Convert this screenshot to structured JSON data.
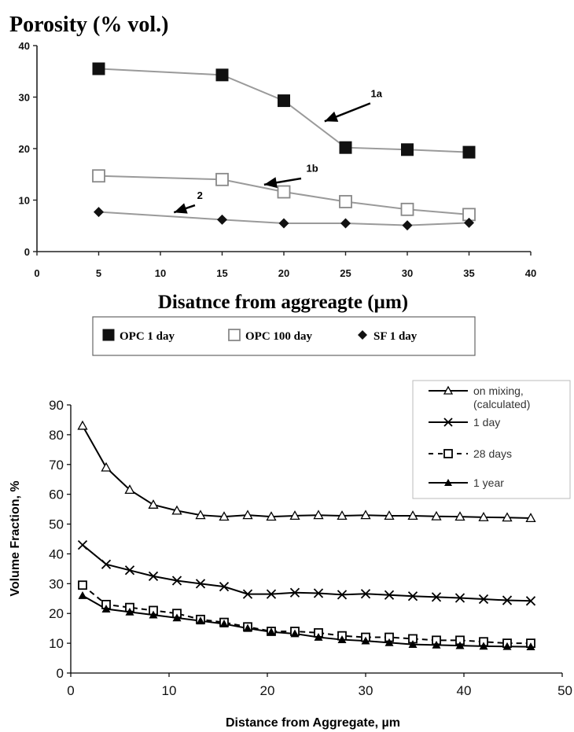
{
  "chart_data": [
    {
      "type": "line",
      "title": "Porosity (% vol.)",
      "xlabel": "Disatnce from aggreagte (µm)",
      "ylabel": "",
      "xlim": [
        0,
        40
      ],
      "ylim": [
        0,
        40
      ],
      "xticks": [
        "0",
        "5",
        "10",
        "15",
        "20",
        "25",
        "30",
        "35",
        "40"
      ],
      "yticks": [
        "0",
        "10",
        "20",
        "30",
        "40"
      ],
      "grid": false,
      "legend_position": "bottom",
      "series": [
        {
          "name": "OPC 1 day",
          "marker": "filled-square",
          "color": "#111111",
          "line_color": "#9a9a9a",
          "x": [
            5,
            15,
            20,
            25,
            30,
            35
          ],
          "y": [
            35.5,
            34.3,
            29.3,
            20.2,
            19.8,
            19.3
          ]
        },
        {
          "name": "OPC 100 day",
          "marker": "open-square",
          "color": "#888888",
          "line_color": "#9a9a9a",
          "x": [
            5,
            15,
            20,
            25,
            30,
            35
          ],
          "y": [
            14.7,
            14.0,
            11.6,
            9.7,
            8.2,
            7.2
          ]
        },
        {
          "name": "SF 1 day",
          "marker": "filled-diamond",
          "color": "#111111",
          "line_color": "#9a9a9a",
          "x": [
            5,
            15,
            20,
            25,
            30,
            35
          ],
          "y": [
            7.7,
            6.2,
            5.5,
            5.5,
            5.1,
            5.6
          ]
        }
      ],
      "annotations": [
        {
          "text": "1a",
          "x": 27.5,
          "y": 30
        },
        {
          "text": "1b",
          "x": 22.3,
          "y": 15.5
        },
        {
          "text": "2",
          "x": 13.2,
          "y": 10.2
        }
      ]
    },
    {
      "type": "line",
      "title": "",
      "xlabel": "Distance from Aggregate,  µm",
      "ylabel": "Volume Fraction,  %",
      "xlim": [
        0,
        50
      ],
      "ylim": [
        0,
        90
      ],
      "xticks": [
        "0",
        "10",
        "20",
        "30",
        "40",
        "50"
      ],
      "yticks": [
        "0",
        "10",
        "20",
        "30",
        "40",
        "50",
        "60",
        "70",
        "80",
        "90"
      ],
      "grid": false,
      "legend_position": "top-right",
      "series": [
        {
          "name": "on mixing, (calculated)",
          "marker": "open-triangle",
          "line_style": "solid",
          "color": "#000000",
          "x": [
            1.2,
            3.6,
            6.0,
            8.4,
            10.8,
            13.2,
            15.6,
            18.0,
            20.4,
            22.8,
            25.2,
            27.6,
            30.0,
            32.4,
            34.8,
            37.2,
            39.6,
            42.0,
            44.4,
            46.8
          ],
          "y": [
            83,
            69,
            61.5,
            56.5,
            54.5,
            53,
            52.5,
            53,
            52.5,
            52.8,
            53,
            52.8,
            53,
            52.8,
            52.8,
            52.6,
            52.5,
            52.3,
            52.2,
            52
          ]
        },
        {
          "name": "1 day",
          "marker": "x",
          "line_style": "solid",
          "color": "#000000",
          "x": [
            1.2,
            3.6,
            6.0,
            8.4,
            10.8,
            13.2,
            15.6,
            18.0,
            20.4,
            22.8,
            25.2,
            27.6,
            30.0,
            32.4,
            34.8,
            37.2,
            39.6,
            42.0,
            44.4,
            46.8
          ],
          "y": [
            43,
            36.5,
            34.5,
            32.5,
            31,
            30,
            29,
            26.5,
            26.5,
            27,
            26.8,
            26.3,
            26.6,
            26.2,
            25.8,
            25.5,
            25.2,
            24.8,
            24.4,
            24.2
          ]
        },
        {
          "name": "28 days",
          "marker": "open-square",
          "line_style": "dashed",
          "color": "#000000",
          "x": [
            1.2,
            3.6,
            6.0,
            8.4,
            10.8,
            13.2,
            15.6,
            18.0,
            20.4,
            22.8,
            25.2,
            27.6,
            30.0,
            32.4,
            34.8,
            37.2,
            39.6,
            42.0,
            44.4,
            46.8
          ],
          "y": [
            29.5,
            23,
            22,
            21,
            20,
            18,
            17,
            15.5,
            14,
            14,
            13.5,
            12.5,
            12,
            12,
            11.5,
            11,
            11,
            10.5,
            10,
            10
          ]
        },
        {
          "name": "1 year",
          "marker": "filled-triangle",
          "line_style": "solid",
          "color": "#000000",
          "x": [
            1.2,
            3.6,
            6.0,
            8.4,
            10.8,
            13.2,
            15.6,
            18.0,
            20.4,
            22.8,
            25.2,
            27.6,
            30.0,
            32.4,
            34.8,
            37.2,
            39.6,
            42.0,
            44.4,
            46.8
          ],
          "y": [
            26,
            21.5,
            20.5,
            19.5,
            18.5,
            17.5,
            16.5,
            15,
            13.8,
            13.2,
            12,
            11.2,
            10.8,
            10.2,
            9.6,
            9.4,
            9.2,
            9.0,
            8.9,
            8.8
          ]
        }
      ]
    }
  ]
}
